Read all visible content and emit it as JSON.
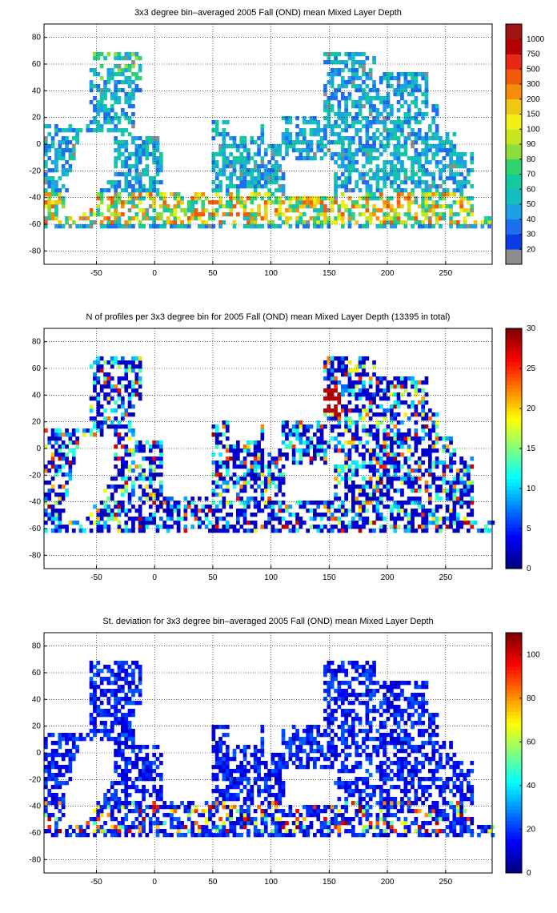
{
  "chart_data": [
    {
      "type": "heatmap",
      "title": "3x3 degree bin–averaged 2005 Fall (OND) mean Mixed Layer Depth",
      "xlim": [
        -95,
        290
      ],
      "ylim": [
        -90,
        90
      ],
      "xticks": [
        -50,
        0,
        50,
        100,
        150,
        200,
        250
      ],
      "yticks": [
        80,
        60,
        40,
        20,
        0,
        -20,
        -40,
        -60,
        -80
      ],
      "grid": "dotted",
      "colorbar": {
        "scale": "categorical",
        "labels": [
          "20",
          "30",
          "40",
          "50",
          "60",
          "70",
          "80",
          "90",
          "100",
          "150",
          "200",
          "300",
          "500",
          "750",
          "1000"
        ],
        "colors": [
          "#8c8c8c",
          "#0a3ce6",
          "#1e6ef0",
          "#1ea0e6",
          "#14bebe",
          "#14c8a0",
          "#32d26e",
          "#8cdc3c",
          "#c8e61e",
          "#f0f014",
          "#f0c814",
          "#f58c0a",
          "#f05a0a",
          "#e62814",
          "#b40000",
          "#a01414"
        ]
      }
    },
    {
      "type": "heatmap",
      "title": "N of profiles per 3x3 degree bin for 2005 Fall (OND) mean Mixed Layer Depth  (13395 in total)",
      "xlim": [
        -95,
        290
      ],
      "ylim": [
        -90,
        90
      ],
      "xticks": [
        -50,
        0,
        50,
        100,
        150,
        200,
        250
      ],
      "yticks": [
        80,
        60,
        40,
        20,
        0,
        -20,
        -40,
        -60,
        -80
      ],
      "grid": "dotted",
      "colorbar": {
        "scale": "continuous",
        "min": 0,
        "max": 30,
        "ticks": [
          "0",
          "5",
          "10",
          "15",
          "20",
          "25",
          "30"
        ]
      }
    },
    {
      "type": "heatmap",
      "title": "St. deviation for 3x3 degree bin–averaged 2005 Fall (OND) mean Mixed Layer Depth",
      "xlim": [
        -95,
        290
      ],
      "ylim": [
        -90,
        90
      ],
      "xticks": [
        -50,
        0,
        50,
        100,
        150,
        200,
        250
      ],
      "yticks": [
        80,
        60,
        40,
        20,
        0,
        -20,
        -40,
        -60,
        -80
      ],
      "grid": "dotted",
      "colorbar": {
        "scale": "continuous",
        "min": 0,
        "max": 110,
        "ticks": [
          "0",
          "20",
          "40",
          "60",
          "80",
          "100"
        ]
      }
    }
  ]
}
